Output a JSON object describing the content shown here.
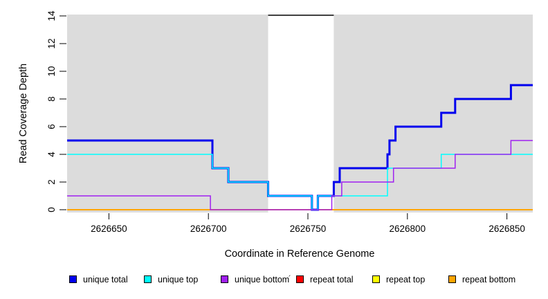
{
  "figure": {
    "xlabel": "Coordinate in Reference Genome",
    "ylabel": "Read Coverage Depth",
    "stray_mark": "´"
  },
  "chart_data": {
    "type": "line",
    "step": true,
    "title": "",
    "xlabel": "Coordinate in Reference Genome",
    "ylabel": "Read Coverage Depth",
    "xlim": [
      2626629,
      2626863
    ],
    "ylim": [
      0,
      14
    ],
    "x_ticks": [
      2626650,
      2626700,
      2626750,
      2626800,
      2626850
    ],
    "y_ticks": [
      0,
      2,
      4,
      6,
      8,
      10,
      12,
      14
    ],
    "plot_background": "#DCDCDC",
    "grid": false,
    "legend_position": "bottom",
    "highlight_region": {
      "x_start": 2626730,
      "x_end": 2626763,
      "fill": "#FFFFFF",
      "top_line_value": 14,
      "top_line_color": "#000000"
    },
    "series": [
      {
        "name": "repeat total",
        "color": "#FF0000",
        "line_width": 2,
        "steps": [
          [
            2626629,
            0
          ]
        ]
      },
      {
        "name": "repeat top",
        "color": "#FFFF00",
        "line_width": 2,
        "steps": [
          [
            2626629,
            0
          ]
        ]
      },
      {
        "name": "repeat bottom",
        "color": "#FFA500",
        "line_width": 2,
        "steps": [
          [
            2626629,
            0
          ]
        ]
      },
      {
        "name": "unique total",
        "color": "#0000EE",
        "line_width": 3,
        "steps": [
          [
            2626629,
            5
          ],
          [
            2626702,
            3
          ],
          [
            2626710,
            2
          ],
          [
            2626730,
            1
          ],
          [
            2626752,
            0
          ],
          [
            2626755,
            1
          ],
          [
            2626763,
            2
          ],
          [
            2626766,
            3
          ],
          [
            2626790,
            4
          ],
          [
            2626791,
            5
          ],
          [
            2626794,
            6
          ],
          [
            2626817,
            7
          ],
          [
            2626824,
            8
          ],
          [
            2626852,
            9
          ]
        ]
      },
      {
        "name": "unique top",
        "color": "#00FFFF",
        "line_width": 1.5,
        "steps": [
          [
            2626629,
            4
          ],
          [
            2626702,
            3
          ],
          [
            2626710,
            2
          ],
          [
            2626730,
            1
          ],
          [
            2626752,
            0
          ],
          [
            2626755,
            1
          ],
          [
            2626790,
            3
          ],
          [
            2626817,
            4
          ]
        ]
      },
      {
        "name": "unique bottom",
        "color": "#A020F0",
        "line_width": 1.5,
        "steps": [
          [
            2626629,
            1
          ],
          [
            2626701,
            0
          ],
          [
            2626762,
            1
          ],
          [
            2626767,
            2
          ],
          [
            2626793,
            3
          ],
          [
            2626824,
            4
          ],
          [
            2626852,
            5
          ]
        ]
      }
    ],
    "legend": [
      {
        "label": "unique total",
        "color": "#0000EE"
      },
      {
        "label": "unique top",
        "color": "#00FFFF"
      },
      {
        "label": "unique bottom",
        "color": "#A020F0"
      },
      {
        "label": "repeat total",
        "color": "#FF0000"
      },
      {
        "label": "repeat top",
        "color": "#FFFF00"
      },
      {
        "label": "repeat bottom",
        "color": "#FFA500"
      }
    ]
  }
}
